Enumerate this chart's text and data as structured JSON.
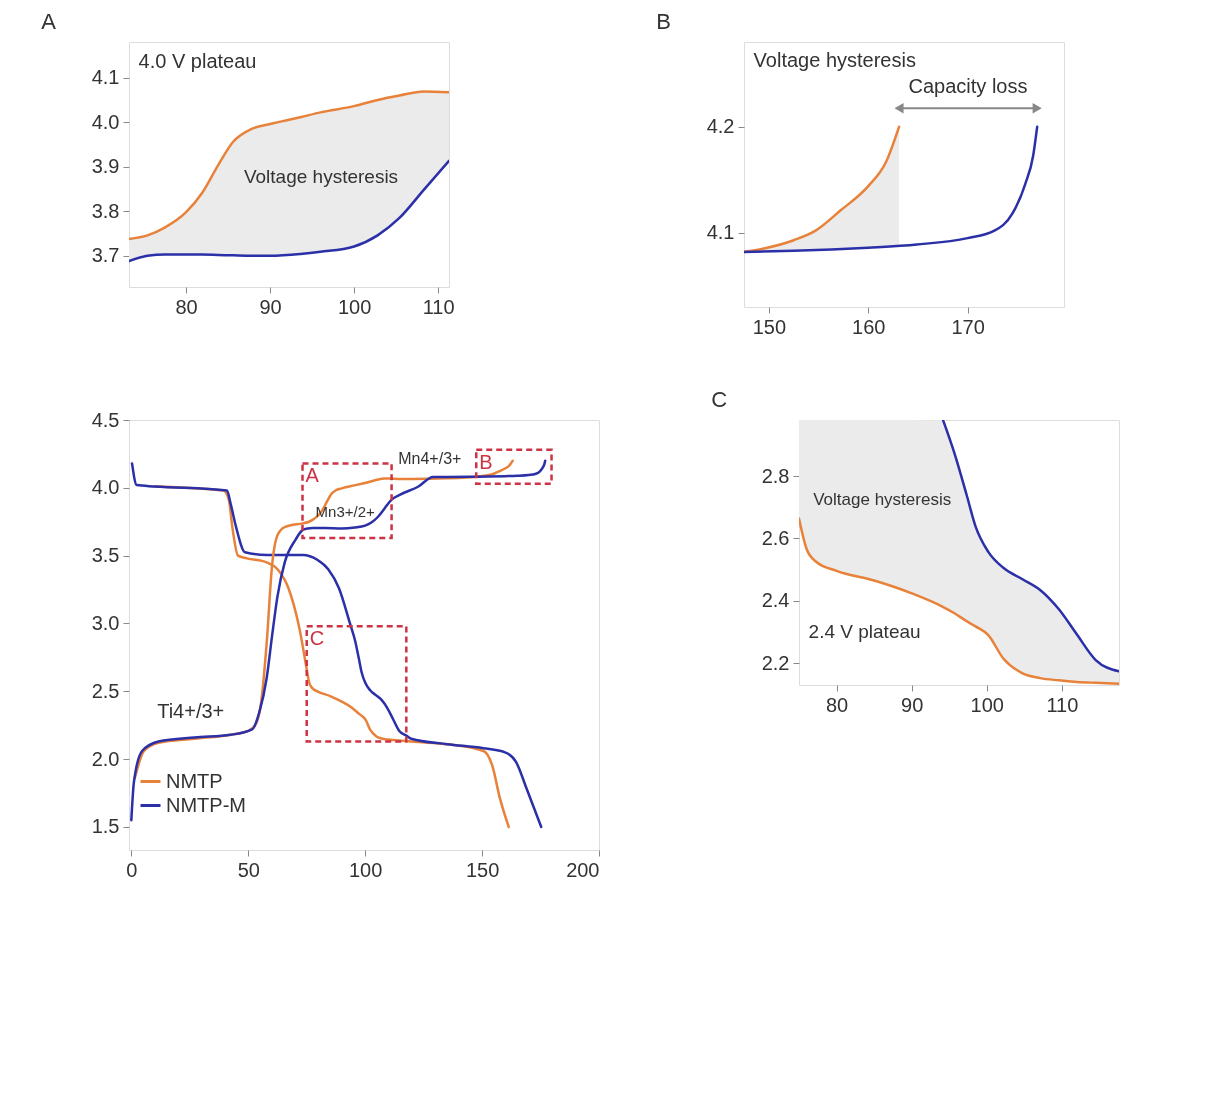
{
  "chart_data": [
    {
      "type": "line",
      "title": "A",
      "xlim": [
        73.2,
        111.3
      ],
      "ylim": [
        3.63,
        4.18
      ],
      "xticks": [
        80,
        90,
        100,
        110
      ],
      "yticks": [
        3.7,
        3.8,
        3.9,
        {
          "value": 4,
          "label": "4.0"
        },
        4.1
      ],
      "annotations": [
        "4.0 V plateau",
        "Voltage hysteresis"
      ],
      "series": [
        {
          "color": "#e8823a",
          "x": [
            73.2,
            75.4,
            77.5,
            80,
            81.9,
            83.8,
            85.6,
            87.8,
            90,
            93.6,
            96,
            100,
            102.8,
            105.4,
            108.3,
            111.3
          ],
          "values": [
            3.738,
            3.746,
            3.764,
            3.798,
            3.841,
            3.903,
            3.956,
            3.985,
            3.996,
            4.011,
            4.022,
            4.036,
            4.05,
            4.06,
            4.069,
            4.067
          ],
          "lower": [
            3.688,
            3.7,
            3.703,
            3.703,
            3.703,
            3.702,
            3.701,
            3.7,
            3.7,
            3.704,
            3.709,
            3.721,
            3.746,
            3.785,
            3.848,
            3.913
          ],
          "upper": [
            3.738,
            3.746,
            3.764,
            3.798,
            3.841,
            3.903,
            3.956,
            3.985,
            3.996,
            4.011,
            4.022,
            4.036,
            4.05,
            4.06,
            4.069,
            4.067
          ]
        },
        {
          "color": "#2b2fa8",
          "x": [
            73.2,
            75.4,
            77.5,
            80,
            81.9,
            83.8,
            85.6,
            87.8,
            90,
            93.6,
            96,
            100,
            102.8,
            105.4,
            108.3,
            111.3
          ],
          "values": [
            3.688,
            3.7,
            3.703,
            3.703,
            3.703,
            3.702,
            3.701,
            3.7,
            3.7,
            3.704,
            3.709,
            3.721,
            3.746,
            3.785,
            3.848,
            3.913
          ]
        }
      ]
    },
    {
      "type": "line",
      "title": "B",
      "xlim": [
        147.5,
        179.7
      ],
      "ylim": [
        4.03,
        4.28
      ],
      "xticks": [
        150,
        160,
        170
      ],
      "yticks": [
        4.1,
        4.2
      ],
      "annotations": [
        "Voltage hysteresis",
        "Capacity loss"
      ],
      "series": [
        {
          "color": "#e8823a",
          "x": [
            147.5,
            149.4,
            152.5,
            154.7,
            157.2,
            160,
            161.8,
            163.1
          ],
          "values": [
            4.082,
            4.085,
            4.093,
            4.102,
            4.121,
            4.144,
            4.167,
            4.2
          ],
          "lower": [
            4.082,
            4.082,
            4.083,
            4.084,
            4.085,
            4.086,
            4.087,
            4.088
          ],
          "upper": [
            4.082,
            4.085,
            4.093,
            4.102,
            4.121,
            4.144,
            4.167,
            4.2
          ]
        },
        {
          "color": "#2b2fa8",
          "x": [
            147.5,
            152.5,
            160,
            164.9,
            170,
            172.7,
            174.5,
            175.8,
            176.6,
            177
          ],
          "values": [
            4.082,
            4.083,
            4.086,
            4.089,
            4.095,
            4.102,
            4.118,
            4.146,
            4.173,
            4.2
          ]
        }
      ]
    },
    {
      "type": "line",
      "xlim": [
        -1,
        200
      ],
      "ylim": [
        1.33,
        4.5
      ],
      "xticks": [
        0,
        50,
        100,
        150,
        200
      ],
      "yticks": [
        1.5,
        {
          "value": 2,
          "label": "2.0"
        },
        2.5,
        {
          "value": 3,
          "label": "3.0"
        },
        3.5,
        {
          "value": 4,
          "label": "4.0"
        },
        4.5
      ],
      "legend": "bottom left",
      "annotations": [
        "Ti4+/3+",
        "Mn3+/2+",
        "Mn4+/3+"
      ],
      "series": [
        {
          "name": "NMTP",
          "color": "#e8823a",
          "x": [
            10,
            39.4,
            41.7,
            43.2,
            45.6,
            49.4,
            57.9,
            62.5,
            67.2,
            71.8,
            75,
            76,
            77.2,
            80,
            85,
            90,
            94.2,
            97.3,
            100.2,
            102.2,
            104.7,
            107.1,
            110,
            114.5,
            117.6,
            119.7,
            135,
            150.6,
            154.4,
            157.5,
            161.4
          ],
          "values": [
            4.01,
            3.98,
            3.91,
            3.71,
            3.5,
            3.48,
            3.45,
            3.4,
            3.26,
            2.97,
            2.664,
            2.567,
            2.527,
            2.496,
            2.465,
            2.424,
            2.38,
            2.335,
            2.29,
            2.215,
            2.168,
            2.152,
            2.144,
            2.137,
            2.134,
            2.13,
            2.11,
            2.06,
            1.95,
            1.72,
            1.5
          ]
        },
        {
          "name": "NMTP-M",
          "color": "#2b2fa8",
          "x": [
            0.3,
            2.3,
            10,
            40.9,
            42.5,
            44.8,
            48.6,
            57.9,
            73.4,
            79.5,
            84.2,
            88.8,
            93.5,
            95.7,
            97.3,
            98.5,
            100.2,
            102.2,
            104.7,
            107.1,
            109.6,
            112,
            114.5,
            117.6,
            119.7,
            135.1,
            150.6,
            159.8,
            164.5,
            169.1,
            175.3
          ],
          "values": [
            4.18,
            4.02,
            4.01,
            3.98,
            3.88,
            3.71,
            3.525,
            3.505,
            3.505,
            3.47,
            3.4,
            3.26,
            3.0,
            2.873,
            2.741,
            2.639,
            2.557,
            2.506,
            2.47,
            2.435,
            2.373,
            2.292,
            2.21,
            2.174,
            2.15,
            2.11,
            2.08,
            2.05,
            1.98,
            1.78,
            1.5
          ]
        },
        {
          "color": "#e8823a",
          "x": [
            1.5,
            5.4,
            11.6,
            27,
            42.5,
            50.2,
            53.3,
            55.6,
            57.9,
            60.2,
            62.5,
            65.6,
            73.2,
            75.4,
            77.5,
            80,
            81.9,
            83.8,
            85.6,
            87.8,
            90,
            93.6,
            100,
            104.6,
            108.3,
            111.3,
            115,
            119.7,
            135.1,
            147.5,
            150,
            152.5,
            154.7,
            157.2,
            160,
            161.8,
            163.1
          ],
          "values": [
            1.86,
            2.06,
            2.12,
            2.15,
            2.18,
            2.21,
            2.26,
            2.43,
            2.86,
            3.43,
            3.65,
            3.71,
            3.738,
            3.746,
            3.764,
            3.798,
            3.841,
            3.903,
            3.956,
            3.985,
            3.996,
            4.011,
            4.036,
            4.057,
            4.069,
            4.067,
            4.065,
            4.065,
            4.07,
            4.082,
            4.087,
            4.093,
            4.102,
            4.121,
            4.144,
            4.167,
            4.2
          ]
        },
        {
          "color": "#2b2fa8",
          "x": [
            0,
            1.1,
            4.6,
            11.6,
            27,
            42.5,
            51.7,
            54.8,
            57.9,
            60.2,
            62.5,
            65.6,
            70.3,
            73.2,
            75.4,
            77.5,
            82.7,
            90,
            95.5,
            100,
            102.8,
            105.4,
            108.3,
            111.3,
            115,
            122.8,
            129,
            135.1,
            147.5,
            152.5,
            160,
            164.9,
            170,
            172.7,
            174.5,
            175.8,
            176.6,
            177
          ],
          "values": [
            1.55,
            1.83,
            2.06,
            2.13,
            2.16,
            2.18,
            2.22,
            2.35,
            2.6,
            2.91,
            3.2,
            3.45,
            3.62,
            3.688,
            3.7,
            3.703,
            3.703,
            3.7,
            3.707,
            3.721,
            3.746,
            3.785,
            3.848,
            3.913,
            3.95,
            4.01,
            4.08,
            4.08,
            4.082,
            4.083,
            4.086,
            4.089,
            4.095,
            4.102,
            4.118,
            4.146,
            4.173,
            4.2
          ]
        }
      ]
    },
    {
      "type": "line",
      "title": "C",
      "xlim": [
        75,
        117.6
      ],
      "ylim": [
        2.13,
        2.98
      ],
      "xticks": [
        80,
        90,
        100,
        110
      ],
      "yticks": [
        2.2,
        2.4,
        2.6,
        2.8
      ],
      "annotations": [
        "Voltage hysteresis",
        "2.4 V plateau"
      ],
      "series": [
        {
          "color": "#e8823a",
          "x": [
            75,
            76,
            77.2,
            80,
            85,
            90,
            94.2,
            95.7,
            97.3,
            98.5,
            100.2,
            102.2,
            104.7,
            107.1,
            109.6,
            112,
            114.5,
            117.6
          ],
          "values": [
            2.664,
            2.567,
            2.527,
            2.496,
            2.465,
            2.424,
            2.38,
            2.36,
            2.335,
            2.318,
            2.29,
            2.215,
            2.168,
            2.152,
            2.145,
            2.14,
            2.137,
            2.134
          ],
          "lower": [
            2.664,
            2.567,
            2.527,
            2.496,
            2.465,
            2.424,
            2.38,
            2.36,
            2.335,
            2.318,
            2.29,
            2.215,
            2.168,
            2.152,
            2.145,
            2.14,
            2.137,
            2.134
          ],
          "upper": [
            2.98,
            2.98,
            2.98,
            2.98,
            2.98,
            2.98,
            2.978,
            2.873,
            2.741,
            2.639,
            2.557,
            2.506,
            2.47,
            2.435,
            2.373,
            2.292,
            2.21,
            2.174
          ]
        },
        {
          "color": "#2b2fa8",
          "x": [
            94.2,
            95.7,
            97.3,
            98.5,
            100.2,
            102.2,
            104.7,
            107.1,
            109.6,
            112,
            114.5,
            117.6
          ],
          "values": [
            2.978,
            2.873,
            2.741,
            2.639,
            2.557,
            2.506,
            2.47,
            2.435,
            2.373,
            2.292,
            2.21,
            2.174
          ]
        }
      ]
    }
  ]
}
